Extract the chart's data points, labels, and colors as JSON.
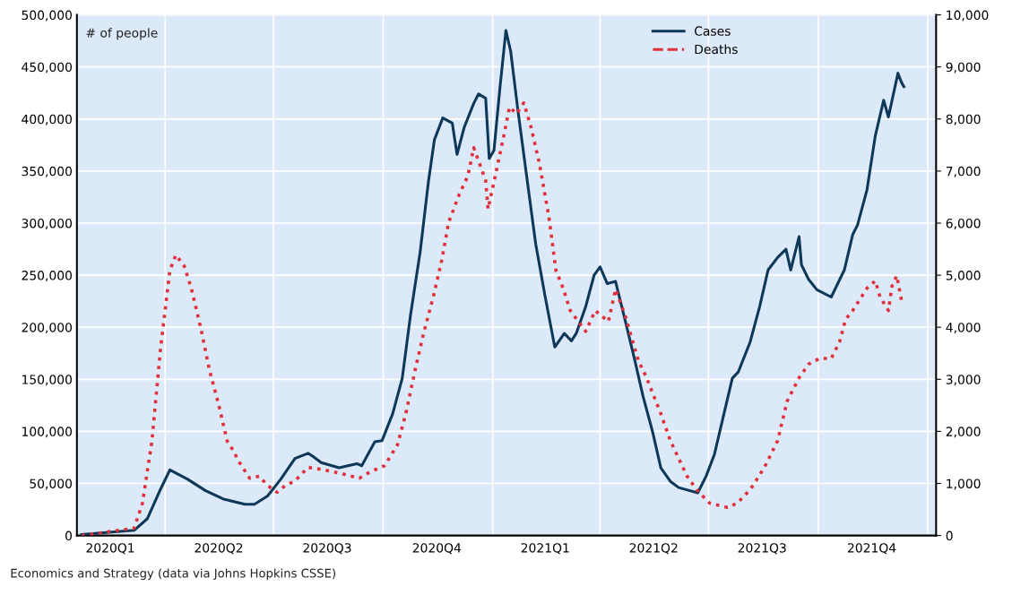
{
  "chart_data": {
    "type": "line",
    "annotations": [
      "# of people",
      "Economics and Strategy (data via Johns Hopkins CSSE)"
    ],
    "xlim": [
      "2020-01-18",
      "2022-01-08"
    ],
    "xticks": [
      {
        "value": "2020-02-15",
        "label": "2020Q1"
      },
      {
        "value": "2020-04-01",
        "label": null
      },
      {
        "value": "2020-05-16",
        "label": "2020Q2"
      },
      {
        "value": "2020-07-01",
        "label": null
      },
      {
        "value": "2020-08-15",
        "label": "2020Q3"
      },
      {
        "value": "2020-10-01",
        "label": null
      },
      {
        "value": "2020-11-15",
        "label": "2020Q4"
      },
      {
        "value": "2021-01-01",
        "label": null
      },
      {
        "value": "2021-02-14",
        "label": "2021Q1"
      },
      {
        "value": "2021-04-01",
        "label": null
      },
      {
        "value": "2021-05-16",
        "label": "2021Q2"
      },
      {
        "value": "2021-07-01",
        "label": null
      },
      {
        "value": "2021-08-15",
        "label": "2021Q3"
      },
      {
        "value": "2021-10-01",
        "label": null
      },
      {
        "value": "2021-11-15",
        "label": "2021Q4"
      },
      {
        "value": "2022-01-01",
        "label": null
      }
    ],
    "ylim": [
      0,
      500000
    ],
    "yticks": [
      0,
      {
        "value": 50000,
        "label": "50,000"
      },
      {
        "value": 100000,
        "label": "100,000"
      },
      {
        "value": 150000,
        "label": "150,000"
      },
      {
        "value": 200000,
        "label": "200,000"
      },
      {
        "value": 250000,
        "label": "250,000"
      },
      {
        "value": 300000,
        "label": "300,000"
      },
      {
        "value": 350000,
        "label": "350,000"
      },
      {
        "value": 400000,
        "label": "400,000"
      },
      {
        "value": 450000,
        "label": "450,000"
      },
      {
        "value": 500000,
        "label": "500,000"
      }
    ],
    "y2lim": [
      0,
      10000
    ],
    "y2ticks": [
      0,
      {
        "value": 1000,
        "label": "1,000"
      },
      {
        "value": 2000,
        "label": "2,000"
      },
      {
        "value": 3000,
        "label": "3,000"
      },
      {
        "value": 4000,
        "label": "4,000"
      },
      {
        "value": 5000,
        "label": "5,000"
      },
      {
        "value": 6000,
        "label": "6,000"
      },
      {
        "value": 7000,
        "label": "7,000"
      },
      {
        "value": 8000,
        "label": "8,000"
      },
      {
        "value": 9000,
        "label": "9,000"
      },
      {
        "value": 10000,
        "label": "10,000"
      }
    ],
    "grid": true,
    "legend": "top",
    "marker": "none",
    "series": [
      {
        "name": "Cases",
        "color": "#0d3858",
        "line_style": "solid",
        "x": [
          "2020-01-22",
          "2020-03-06",
          "2020-03-17",
          "2020-03-28",
          "2020-04-05",
          "2020-04-20",
          "2020-05-05",
          "2020-05-20",
          "2020-06-07",
          "2020-06-15",
          "2020-06-26",
          "2020-07-07",
          "2020-07-19",
          "2020-07-30",
          "2020-08-03",
          "2020-08-10",
          "2020-08-25",
          "2020-09-09",
          "2020-09-13",
          "2020-09-24",
          "2020-09-30",
          "2020-10-09",
          "2020-10-17",
          "2020-10-24",
          "2020-11-01",
          "2020-11-08",
          "2020-11-13",
          "2020-11-20",
          "2020-11-28",
          "2020-12-02",
          "2020-12-08",
          "2020-12-16",
          "2020-12-20",
          "2020-12-26",
          "2020-12-29",
          "2021-01-02",
          "2021-01-07",
          "2021-01-12",
          "2021-01-16",
          "2021-01-22",
          "2021-01-30",
          "2021-02-06",
          "2021-02-14",
          "2021-02-22",
          "2021-03-02",
          "2021-03-08",
          "2021-03-12",
          "2021-03-20",
          "2021-03-27",
          "2021-04-01",
          "2021-04-07",
          "2021-04-14",
          "2021-04-22",
          "2021-04-30",
          "2021-05-07",
          "2021-05-15",
          "2021-05-22",
          "2021-05-30",
          "2021-06-06",
          "2021-06-22",
          "2021-06-29",
          "2021-07-06",
          "2021-07-14",
          "2021-07-21",
          "2021-07-26",
          "2021-08-05",
          "2021-08-13",
          "2021-08-20",
          "2021-08-28",
          "2021-09-04",
          "2021-09-08",
          "2021-09-15",
          "2021-09-17",
          "2021-09-23",
          "2021-09-30",
          "2021-10-12",
          "2021-10-23",
          "2021-10-30",
          "2021-11-03",
          "2021-11-11",
          "2021-11-18",
          "2021-11-25",
          "2021-11-29",
          "2021-12-07",
          "2021-12-10",
          "2021-12-12"
        ],
        "values": [
          1000,
          5000,
          16000,
          44000,
          63000,
          54000,
          43000,
          35000,
          30000,
          30000,
          38000,
          54000,
          74000,
          79000,
          76000,
          70000,
          65000,
          69000,
          67000,
          90000,
          91000,
          117000,
          151000,
          212000,
          272000,
          340000,
          380000,
          401000,
          396000,
          366000,
          392000,
          415000,
          424000,
          420000,
          362000,
          370000,
          430000,
          485000,
          465000,
          409000,
          340000,
          280000,
          229000,
          181000,
          194000,
          187000,
          194000,
          220000,
          250000,
          258000,
          242000,
          244000,
          207000,
          169000,
          134000,
          100000,
          65000,
          52000,
          46000,
          41000,
          57000,
          78000,
          117000,
          151000,
          157000,
          186000,
          220000,
          255000,
          267000,
          275000,
          255000,
          287000,
          260000,
          246000,
          236000,
          229000,
          255000,
          289000,
          298000,
          332000,
          384000,
          418000,
          402000,
          444000,
          435000,
          431000
        ]
      },
      {
        "name": "Deaths",
        "color": "#e0303c",
        "line_style": "dotted",
        "axis": "y2",
        "x": [
          "2020-01-22",
          "2020-03-06",
          "2020-03-13",
          "2020-03-21",
          "2020-03-28",
          "2020-04-05",
          "2020-04-10",
          "2020-04-17",
          "2020-04-23",
          "2020-05-01",
          "2020-05-08",
          "2020-05-16",
          "2020-05-23",
          "2020-05-29",
          "2020-06-01",
          "2020-06-11",
          "2020-06-19",
          "2020-06-26",
          "2020-07-04",
          "2020-07-11",
          "2020-07-19",
          "2020-07-30",
          "2020-08-10",
          "2020-08-25",
          "2020-09-11",
          "2020-09-20",
          "2020-10-02",
          "2020-10-13",
          "2020-10-20",
          "2020-10-28",
          "2020-11-04",
          "2020-11-12",
          "2020-11-19",
          "2020-11-25",
          "2020-12-04",
          "2020-12-11",
          "2020-12-16",
          "2020-12-26",
          "2020-12-28",
          "2021-01-03",
          "2021-01-11",
          "2021-01-15",
          "2021-01-21",
          "2021-01-27",
          "2021-02-02",
          "2021-02-09",
          "2021-02-17",
          "2021-02-23",
          "2021-03-01",
          "2021-03-07",
          "2021-03-20",
          "2021-03-28",
          "2021-04-08",
          "2021-04-14",
          "2021-04-22",
          "2021-05-03",
          "2021-05-10",
          "2021-05-22",
          "2021-05-30",
          "2021-06-06",
          "2021-06-13",
          "2021-06-21",
          "2021-07-02",
          "2021-07-17",
          "2021-07-25",
          "2021-08-05",
          "2021-08-17",
          "2021-08-28",
          "2021-09-05",
          "2021-09-15",
          "2021-09-23",
          "2021-10-02",
          "2021-10-12",
          "2021-10-19",
          "2021-10-24",
          "2021-10-30",
          "2021-11-11",
          "2021-11-18",
          "2021-11-22",
          "2021-11-29",
          "2021-12-02",
          "2021-12-06",
          "2021-12-10"
        ],
        "values": [
          0,
          140,
          620,
          1820,
          3550,
          5090,
          5390,
          5180,
          4750,
          3980,
          3200,
          2510,
          1820,
          1600,
          1450,
          1100,
          1140,
          960,
          830,
          960,
          1050,
          1310,
          1270,
          1200,
          1100,
          1220,
          1340,
          1740,
          2340,
          3200,
          3890,
          4580,
          5270,
          6020,
          6560,
          6900,
          7450,
          6820,
          6270,
          6900,
          7760,
          8230,
          8100,
          8310,
          7850,
          7160,
          6130,
          5090,
          4750,
          4320,
          3920,
          4320,
          4110,
          4730,
          4230,
          3370,
          3030,
          2340,
          1820,
          1480,
          1140,
          880,
          620,
          540,
          620,
          880,
          1310,
          1820,
          2580,
          3030,
          3290,
          3400,
          3400,
          3720,
          4150,
          4320,
          4750,
          4890,
          4580,
          4320,
          4790,
          4990,
          4510
        ]
      }
    ]
  }
}
